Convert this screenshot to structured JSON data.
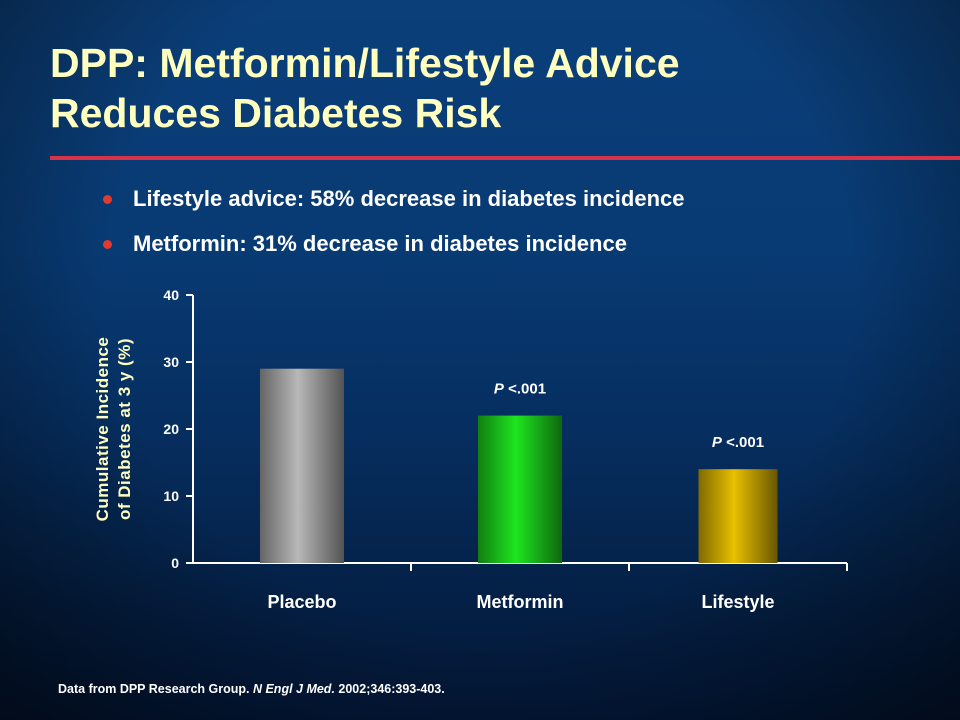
{
  "slide": {
    "title_line1": "DPP: Metformin/Lifestyle Advice",
    "title_line2": "Reduces Diabetes Risk",
    "bullets": [
      "Lifestyle advice: 58% decrease in diabetes incidence",
      "Metformin: 31% decrease in diabetes incidence"
    ],
    "footnote": {
      "prefix": "Data from DPP Research Group. ",
      "journal": "N Engl J Med.",
      "suffix": " 2002;346:393-403."
    }
  },
  "colors": {
    "title": "#ffffc0",
    "rule": "#d6334a",
    "bullet": "#e23a2e",
    "axis_label": "#ffffc0"
  },
  "chart_data": {
    "type": "bar",
    "categories": [
      "Placebo",
      "Metformin",
      "Lifestyle"
    ],
    "values": [
      29,
      22,
      14
    ],
    "bar_colors": [
      "#b8b8b8",
      "#1ee61e",
      "#e8c000"
    ],
    "annotations": [
      "",
      "P <.001",
      "P <.001"
    ],
    "ylabel_line1": "Cumulative Incidence",
    "ylabel_line2": "of Diabetes at 3 y (%)",
    "ylim": [
      0,
      40
    ],
    "yticks": [
      0,
      10,
      20,
      30,
      40
    ],
    "grid": false
  }
}
